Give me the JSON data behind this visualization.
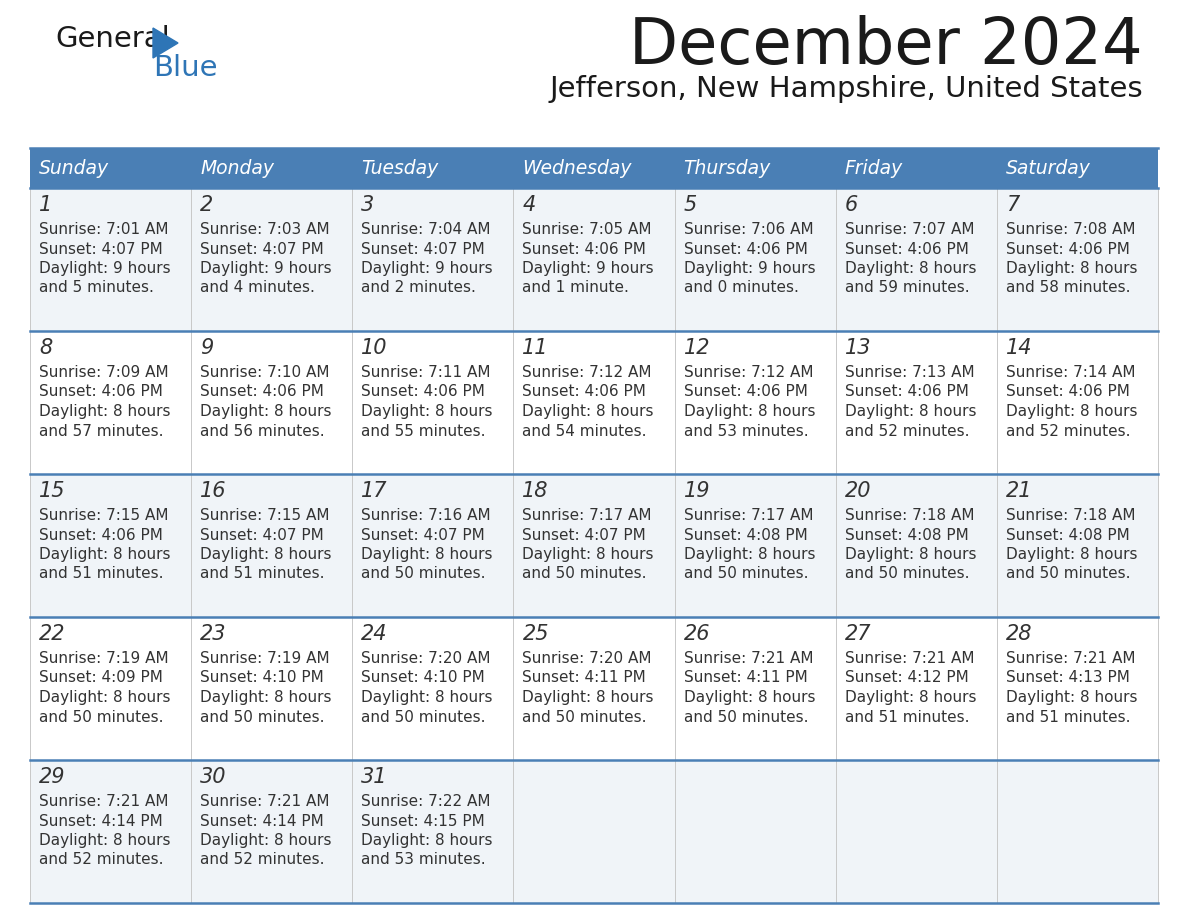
{
  "title": "December 2024",
  "subtitle": "Jefferson, New Hampshire, United States",
  "header_color": "#4a7fb5",
  "header_text_color": "#ffffff",
  "cell_bg_even": "#f0f4f8",
  "cell_bg_odd": "#ffffff",
  "border_color": "#4a7fb5",
  "text_color": "#333333",
  "days_of_week": [
    "Sunday",
    "Monday",
    "Tuesday",
    "Wednesday",
    "Thursday",
    "Friday",
    "Saturday"
  ],
  "calendar_data": [
    [
      {
        "day": "1",
        "sunrise": "7:01 AM",
        "sunset": "4:07 PM",
        "daylight": "9 hours and 5 minutes."
      },
      {
        "day": "2",
        "sunrise": "7:03 AM",
        "sunset": "4:07 PM",
        "daylight": "9 hours and 4 minutes."
      },
      {
        "day": "3",
        "sunrise": "7:04 AM",
        "sunset": "4:07 PM",
        "daylight": "9 hours and 2 minutes."
      },
      {
        "day": "4",
        "sunrise": "7:05 AM",
        "sunset": "4:06 PM",
        "daylight": "9 hours and 1 minute."
      },
      {
        "day": "5",
        "sunrise": "7:06 AM",
        "sunset": "4:06 PM",
        "daylight": "9 hours and 0 minutes."
      },
      {
        "day": "6",
        "sunrise": "7:07 AM",
        "sunset": "4:06 PM",
        "daylight": "8 hours and 59 minutes."
      },
      {
        "day": "7",
        "sunrise": "7:08 AM",
        "sunset": "4:06 PM",
        "daylight": "8 hours and 58 minutes."
      }
    ],
    [
      {
        "day": "8",
        "sunrise": "7:09 AM",
        "sunset": "4:06 PM",
        "daylight": "8 hours and 57 minutes."
      },
      {
        "day": "9",
        "sunrise": "7:10 AM",
        "sunset": "4:06 PM",
        "daylight": "8 hours and 56 minutes."
      },
      {
        "day": "10",
        "sunrise": "7:11 AM",
        "sunset": "4:06 PM",
        "daylight": "8 hours and 55 minutes."
      },
      {
        "day": "11",
        "sunrise": "7:12 AM",
        "sunset": "4:06 PM",
        "daylight": "8 hours and 54 minutes."
      },
      {
        "day": "12",
        "sunrise": "7:12 AM",
        "sunset": "4:06 PM",
        "daylight": "8 hours and 53 minutes."
      },
      {
        "day": "13",
        "sunrise": "7:13 AM",
        "sunset": "4:06 PM",
        "daylight": "8 hours and 52 minutes."
      },
      {
        "day": "14",
        "sunrise": "7:14 AM",
        "sunset": "4:06 PM",
        "daylight": "8 hours and 52 minutes."
      }
    ],
    [
      {
        "day": "15",
        "sunrise": "7:15 AM",
        "sunset": "4:06 PM",
        "daylight": "8 hours and 51 minutes."
      },
      {
        "day": "16",
        "sunrise": "7:15 AM",
        "sunset": "4:07 PM",
        "daylight": "8 hours and 51 minutes."
      },
      {
        "day": "17",
        "sunrise": "7:16 AM",
        "sunset": "4:07 PM",
        "daylight": "8 hours and 50 minutes."
      },
      {
        "day": "18",
        "sunrise": "7:17 AM",
        "sunset": "4:07 PM",
        "daylight": "8 hours and 50 minutes."
      },
      {
        "day": "19",
        "sunrise": "7:17 AM",
        "sunset": "4:08 PM",
        "daylight": "8 hours and 50 minutes."
      },
      {
        "day": "20",
        "sunrise": "7:18 AM",
        "sunset": "4:08 PM",
        "daylight": "8 hours and 50 minutes."
      },
      {
        "day": "21",
        "sunrise": "7:18 AM",
        "sunset": "4:08 PM",
        "daylight": "8 hours and 50 minutes."
      }
    ],
    [
      {
        "day": "22",
        "sunrise": "7:19 AM",
        "sunset": "4:09 PM",
        "daylight": "8 hours and 50 minutes."
      },
      {
        "day": "23",
        "sunrise": "7:19 AM",
        "sunset": "4:10 PM",
        "daylight": "8 hours and 50 minutes."
      },
      {
        "day": "24",
        "sunrise": "7:20 AM",
        "sunset": "4:10 PM",
        "daylight": "8 hours and 50 minutes."
      },
      {
        "day": "25",
        "sunrise": "7:20 AM",
        "sunset": "4:11 PM",
        "daylight": "8 hours and 50 minutes."
      },
      {
        "day": "26",
        "sunrise": "7:21 AM",
        "sunset": "4:11 PM",
        "daylight": "8 hours and 50 minutes."
      },
      {
        "day": "27",
        "sunrise": "7:21 AM",
        "sunset": "4:12 PM",
        "daylight": "8 hours and 51 minutes."
      },
      {
        "day": "28",
        "sunrise": "7:21 AM",
        "sunset": "4:13 PM",
        "daylight": "8 hours and 51 minutes."
      }
    ],
    [
      {
        "day": "29",
        "sunrise": "7:21 AM",
        "sunset": "4:14 PM",
        "daylight": "8 hours and 52 minutes."
      },
      {
        "day": "30",
        "sunrise": "7:21 AM",
        "sunset": "4:14 PM",
        "daylight": "8 hours and 52 minutes."
      },
      {
        "day": "31",
        "sunrise": "7:22 AM",
        "sunset": "4:15 PM",
        "daylight": "8 hours and 53 minutes."
      },
      null,
      null,
      null,
      null
    ]
  ],
  "fig_width": 11.88,
  "fig_height": 9.18,
  "dpi": 100
}
